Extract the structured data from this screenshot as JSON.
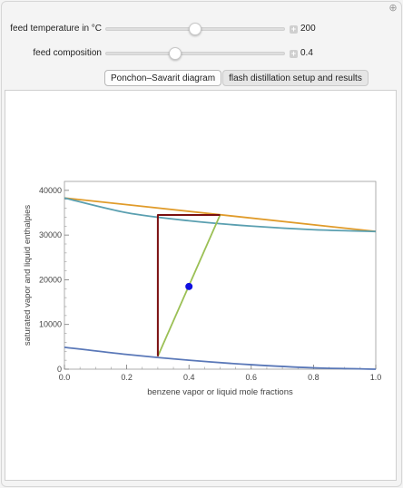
{
  "controls": {
    "temperature": {
      "label": "feed temperature in °C",
      "value": "200",
      "fraction": 0.5
    },
    "composition": {
      "label": "feed composition",
      "value": "0.4",
      "fraction": 0.39
    }
  },
  "tabs": [
    {
      "label": "Ponchon–Savarit diagram",
      "active": true
    },
    {
      "label": "flash distillation setup and results",
      "active": false
    }
  ],
  "chart_data": {
    "type": "line",
    "xlabel": "benzene vapor or liquid mole fractions",
    "ylabel": "saturated vapor and liquid enthalpies",
    "xlim": [
      0,
      1
    ],
    "ylim": [
      0,
      42000
    ],
    "xticks": [
      "0.0",
      "0.2",
      "0.4",
      "0.6",
      "0.8",
      "1.0"
    ],
    "yticks": [
      "0",
      "10000",
      "20000",
      "30000",
      "40000"
    ],
    "series": [
      {
        "color": "#e09b2a",
        "x": [
          0,
          1
        ],
        "y": [
          38300,
          30800
        ]
      },
      {
        "color": "#5a9fb0",
        "x": [
          0,
          0.2,
          0.4,
          0.6,
          0.8,
          1.0
        ],
        "y": [
          38300,
          35000,
          33200,
          32000,
          31200,
          30800
        ]
      },
      {
        "color": "#5a78b8",
        "x": [
          0,
          0.2,
          0.4,
          0.6,
          0.8,
          1.0
        ],
        "y": [
          4900,
          3300,
          2000,
          1000,
          300,
          0
        ]
      },
      {
        "color": "#9bc055",
        "x": [
          0.3,
          0.5
        ],
        "y": [
          2900,
          34500
        ]
      },
      {
        "color": "#7a0f10",
        "x": [
          0.3,
          0.3,
          0.5
        ],
        "y": [
          2900,
          34500,
          34500
        ]
      }
    ],
    "feed_point": {
      "x": 0.4,
      "y": 18500,
      "color": "#1010e0"
    }
  }
}
